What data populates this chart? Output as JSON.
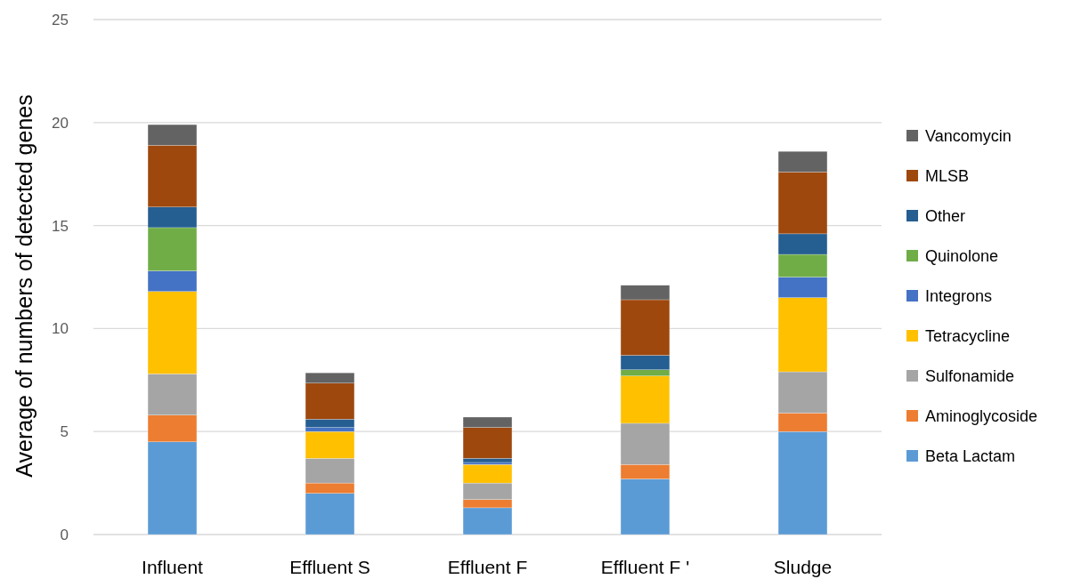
{
  "chart_data": {
    "type": "bar",
    "stacked": true,
    "ylabel": "Average of numbers of detected genes",
    "categories": [
      "Influent",
      "Effluent S",
      "Effluent F",
      "Effluent F '",
      "Sludge"
    ],
    "ylim": [
      0,
      25
    ],
    "yticks": [
      0,
      5,
      10,
      15,
      20,
      25
    ],
    "grid": "y",
    "legend": "right",
    "series": [
      {
        "name": "Beta Lactam",
        "color": "#5b9bd5",
        "values": [
          4.5,
          2.0,
          1.3,
          2.7,
          5.0
        ]
      },
      {
        "name": "Aminoglycoside",
        "color": "#ed7d31",
        "values": [
          1.3,
          0.5,
          0.4,
          0.7,
          0.9
        ]
      },
      {
        "name": "Sulfonamide",
        "color": "#a5a5a5",
        "values": [
          2.0,
          1.2,
          0.8,
          2.0,
          2.0
        ]
      },
      {
        "name": "Tetracycline",
        "color": "#ffc000",
        "values": [
          4.0,
          1.3,
          0.9,
          2.3,
          3.6
        ]
      },
      {
        "name": "Integrons",
        "color": "#4472c4",
        "values": [
          1.0,
          0.2,
          0.1,
          0,
          1.0
        ]
      },
      {
        "name": "Quinolone",
        "color": "#70ad47",
        "values": [
          2.1,
          0,
          0,
          0.3,
          1.1
        ]
      },
      {
        "name": "Other",
        "color": "#255e91",
        "values": [
          1.0,
          0.4,
          0.2,
          0.7,
          1.0
        ]
      },
      {
        "name": "MLSB",
        "color": "#9e480e",
        "values": [
          3.0,
          1.75,
          1.5,
          2.7,
          3.0
        ]
      },
      {
        "name": "Vancomycin",
        "color": "#636363",
        "values": [
          1.0,
          0.5,
          0.5,
          0.7,
          1.0
        ]
      }
    ]
  }
}
